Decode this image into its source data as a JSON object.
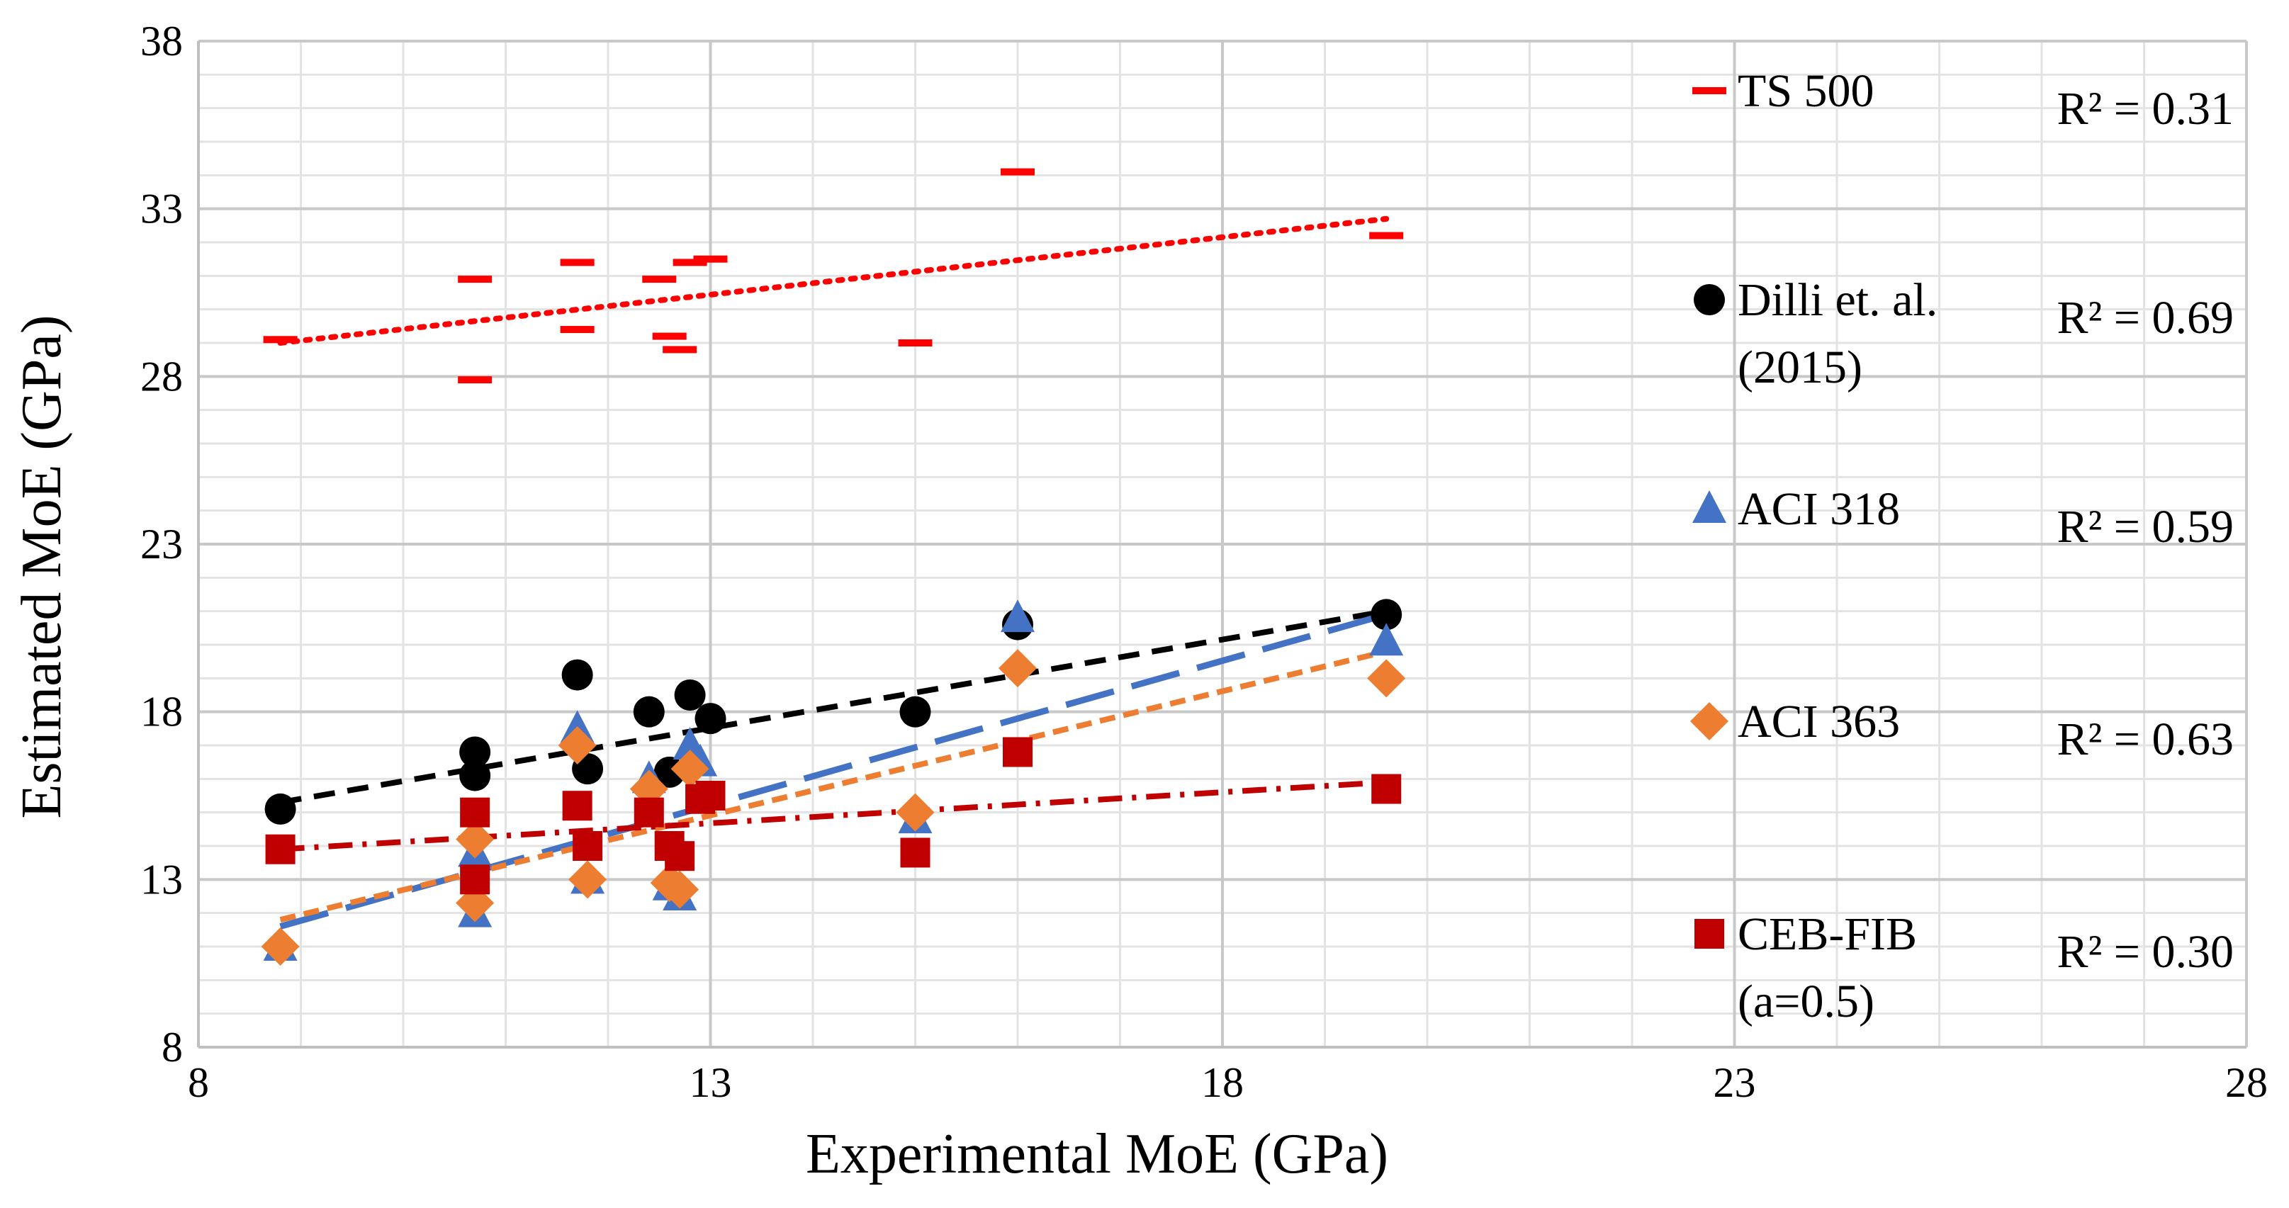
{
  "chart_data": {
    "type": "scatter",
    "title": "",
    "xlabel": "Experimental MoE (GPa)",
    "ylabel": "Estimated MoE (GPa)",
    "xlim": [
      8,
      28
    ],
    "ylim": [
      8,
      38
    ],
    "x_ticks": [
      "8",
      "13",
      "18",
      "23",
      "28"
    ],
    "y_ticks": [
      "8",
      "13",
      "18",
      "23",
      "28",
      "33",
      "38"
    ],
    "grid": "major and minor",
    "legend_position": "right",
    "series": [
      {
        "name": "TS 500",
        "legend_label": [
          "TS 500"
        ],
        "r2": "R² = 0.31",
        "marker": "dash",
        "color": "#ff0000",
        "trend": {
          "style": "dotted",
          "from": [
            8.8,
            29.0
          ],
          "to": [
            19.6,
            32.7
          ]
        },
        "points": [
          [
            8.8,
            29.1
          ],
          [
            10.7,
            30.9
          ],
          [
            10.7,
            27.9
          ],
          [
            11.7,
            31.4
          ],
          [
            11.7,
            29.4
          ],
          [
            12.5,
            30.9
          ],
          [
            12.6,
            29.2
          ],
          [
            12.7,
            28.8
          ],
          [
            12.8,
            31.4
          ],
          [
            13.0,
            31.5
          ],
          [
            15.0,
            29.0
          ],
          [
            16.0,
            34.1
          ],
          [
            19.6,
            32.2
          ]
        ]
      },
      {
        "name": "Dilli et. al. (2015)",
        "legend_label": [
          "Dilli et. al.",
          "(2015)"
        ],
        "r2": "R² = 0.69",
        "marker": "circle",
        "color": "#000000",
        "trend": {
          "style": "dashed",
          "from": [
            8.8,
            15.3
          ],
          "to": [
            19.6,
            21.0
          ]
        },
        "points": [
          [
            8.8,
            15.1
          ],
          [
            10.7,
            16.8
          ],
          [
            10.7,
            16.1
          ],
          [
            11.7,
            19.1
          ],
          [
            11.8,
            16.3
          ],
          [
            12.4,
            18.0
          ],
          [
            12.6,
            16.2
          ],
          [
            12.8,
            18.5
          ],
          [
            13.0,
            17.8
          ],
          [
            15.0,
            18.0
          ],
          [
            16.0,
            20.6
          ],
          [
            19.6,
            20.9
          ]
        ]
      },
      {
        "name": "ACI 318",
        "legend_label": [
          "ACI 318"
        ],
        "r2": "R² = 0.59",
        "marker": "triangle",
        "color": "#4472c4",
        "trend": {
          "style": "long-dash",
          "from": [
            8.8,
            11.6
          ],
          "to": [
            19.6,
            20.9
          ]
        },
        "points": [
          [
            8.8,
            11.0
          ],
          [
            10.7,
            12.0
          ],
          [
            10.7,
            13.8
          ],
          [
            11.7,
            17.5
          ],
          [
            11.8,
            13.0
          ],
          [
            12.4,
            16.0
          ],
          [
            12.6,
            12.8
          ],
          [
            12.7,
            12.5
          ],
          [
            12.8,
            17.0
          ],
          [
            12.9,
            16.5
          ],
          [
            15.0,
            14.8
          ],
          [
            16.0,
            20.8
          ],
          [
            19.6,
            20.1
          ]
        ]
      },
      {
        "name": "ACI 363",
        "legend_label": [
          "ACI 363"
        ],
        "r2": "R² = 0.63",
        "marker": "diamond",
        "color": "#ed7d31",
        "trend": {
          "style": "short-dash",
          "from": [
            8.8,
            11.8
          ],
          "to": [
            19.6,
            19.8
          ]
        },
        "points": [
          [
            8.8,
            11.0
          ],
          [
            10.7,
            12.3
          ],
          [
            10.7,
            14.2
          ],
          [
            11.7,
            17.0
          ],
          [
            11.8,
            13.0
          ],
          [
            12.4,
            15.7
          ],
          [
            12.6,
            12.9
          ],
          [
            12.7,
            12.7
          ],
          [
            12.8,
            16.3
          ],
          [
            15.0,
            15.0
          ],
          [
            16.0,
            19.3
          ],
          [
            19.6,
            19.0
          ]
        ]
      },
      {
        "name": "CEB-FIB (a=0.5)",
        "legend_label": [
          "CEB-FIB",
          "(a=0.5)"
        ],
        "r2": "R² = 0.30",
        "marker": "square",
        "color": "#c00000",
        "trend": {
          "style": "dash-dot",
          "from": [
            8.8,
            13.9
          ],
          "to": [
            19.6,
            15.9
          ]
        },
        "points": [
          [
            8.8,
            13.9
          ],
          [
            10.7,
            15.0
          ],
          [
            10.7,
            13.0
          ],
          [
            11.7,
            15.2
          ],
          [
            11.8,
            14.0
          ],
          [
            12.4,
            15.0
          ],
          [
            12.6,
            14.0
          ],
          [
            12.7,
            13.7
          ],
          [
            12.9,
            15.4
          ],
          [
            13.0,
            15.5
          ],
          [
            15.0,
            13.8
          ],
          [
            16.0,
            16.8
          ],
          [
            19.6,
            15.7
          ]
        ]
      }
    ]
  }
}
